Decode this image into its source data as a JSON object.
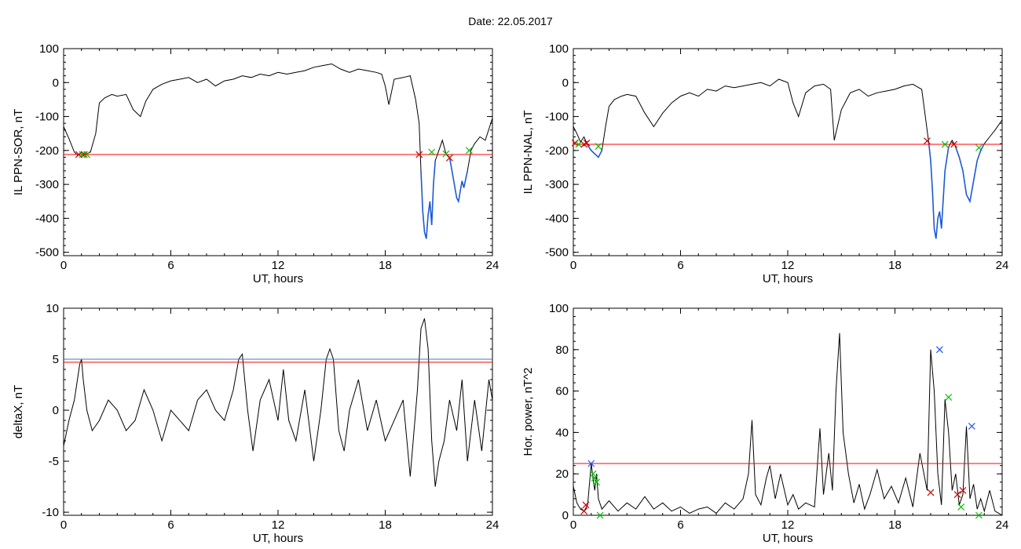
{
  "title": "Date:  22.05.2017",
  "colors": {
    "data": "#000000",
    "threshold": "#ff0000",
    "highlight": "#1e5bd6",
    "marker_green": "#00c000",
    "marker_red": "#d00000",
    "marker_blue": "#2255ee",
    "threshold_blue": "#3a7fd0"
  },
  "chart_data": [
    {
      "id": "ppn-sor",
      "type": "line",
      "ylabel": "IL PPN-SOR, nT",
      "xlabel": "UT, hours",
      "xlim": [
        0,
        24
      ],
      "ylim": [
        -510,
        100
      ],
      "xticks": [
        0,
        6,
        12,
        18,
        24
      ],
      "yticks": [
        -500,
        -400,
        -300,
        -200,
        -100,
        0,
        100
      ],
      "threshold": -212,
      "series": [
        {
          "x": [
            0,
            0.3,
            0.6,
            0.8,
            1.0,
            1.2,
            1.5,
            1.8,
            2.0,
            2.3,
            2.7,
            3.0,
            3.5,
            3.9,
            4.3,
            4.6,
            5.0,
            5.5,
            6.0,
            6.5,
            7.0,
            7.5,
            8.0,
            8.5,
            9.0,
            9.5,
            10.0,
            10.5,
            11.0,
            11.5,
            12.0,
            12.5,
            13.0,
            13.5,
            14.0,
            14.5,
            15.0,
            15.5,
            16.0,
            16.5,
            17.0,
            17.5,
            17.8,
            18.0,
            18.2,
            18.5,
            19.0,
            19.4,
            19.7,
            19.9,
            20.0,
            20.1,
            20.2,
            20.3,
            20.4,
            20.5,
            20.6,
            20.7,
            20.8,
            21.0,
            21.2,
            21.4,
            21.6,
            21.8,
            22.0,
            22.1,
            22.2,
            22.3,
            22.4,
            22.6,
            22.8,
            23.0,
            23.3,
            23.6,
            24
          ],
          "y": [
            -130,
            -165,
            -205,
            -215,
            -205,
            -212,
            -205,
            -150,
            -60,
            -45,
            -35,
            -40,
            -35,
            -80,
            -100,
            -55,
            -20,
            -5,
            5,
            10,
            15,
            0,
            10,
            -10,
            5,
            10,
            20,
            15,
            25,
            20,
            30,
            25,
            30,
            35,
            45,
            50,
            55,
            40,
            30,
            40,
            35,
            30,
            25,
            -10,
            -65,
            10,
            15,
            20,
            -50,
            -120,
            -260,
            -380,
            -440,
            -460,
            -390,
            -350,
            -420,
            -300,
            -230,
            -200,
            -170,
            -210,
            -220,
            -280,
            -340,
            -350,
            -320,
            -290,
            -310,
            -260,
            -200,
            -180,
            -160,
            -170,
            -105
          ]
        }
      ],
      "markers": [
        {
          "color": "red",
          "x": 0.85,
          "y": -212
        },
        {
          "color": "green",
          "x": 1.05,
          "y": -212
        },
        {
          "color": "red",
          "x": 1.15,
          "y": -212
        },
        {
          "color": "green",
          "x": 1.3,
          "y": -212
        },
        {
          "color": "red",
          "x": 19.9,
          "y": -212
        },
        {
          "color": "green",
          "x": 20.6,
          "y": -205
        },
        {
          "color": "green",
          "x": 21.4,
          "y": -210
        },
        {
          "color": "red",
          "x": 21.6,
          "y": -222
        },
        {
          "color": "green",
          "x": 22.7,
          "y": -200
        }
      ]
    },
    {
      "id": "ppn-nal",
      "type": "line",
      "ylabel": "IL PPN-NAL, nT",
      "xlabel": "UT, hours",
      "xlim": [
        0,
        24
      ],
      "ylim": [
        -510,
        100
      ],
      "xticks": [
        0,
        6,
        12,
        18,
        24
      ],
      "yticks": [
        -500,
        -400,
        -300,
        -200,
        -100,
        0,
        100
      ],
      "threshold": -182,
      "series": [
        {
          "x": [
            0,
            0.2,
            0.4,
            0.6,
            0.8,
            1.0,
            1.2,
            1.4,
            1.6,
            1.8,
            2.0,
            2.3,
            2.7,
            3.0,
            3.5,
            4.0,
            4.5,
            5.0,
            5.5,
            6.0,
            6.5,
            7.0,
            7.5,
            8.0,
            8.5,
            9.0,
            9.5,
            10.0,
            10.5,
            11.0,
            11.5,
            12.0,
            12.3,
            12.6,
            13.0,
            13.5,
            14.0,
            14.4,
            14.6,
            15.0,
            15.5,
            16.0,
            16.5,
            17.0,
            17.5,
            18.0,
            18.5,
            19.0,
            19.5,
            19.7,
            19.9,
            20.0,
            20.1,
            20.2,
            20.3,
            20.4,
            20.5,
            20.6,
            20.8,
            21.0,
            21.2,
            21.4,
            21.6,
            21.8,
            22.0,
            22.2,
            22.4,
            22.6,
            22.8,
            23.0,
            23.3,
            23.6,
            24
          ],
          "y": [
            -130,
            -150,
            -175,
            -160,
            -185,
            -200,
            -210,
            -220,
            -200,
            -130,
            -70,
            -50,
            -40,
            -35,
            -40,
            -90,
            -130,
            -90,
            -60,
            -40,
            -30,
            -40,
            -20,
            -25,
            -10,
            -15,
            -10,
            -5,
            0,
            -10,
            10,
            0,
            -60,
            -100,
            -30,
            -10,
            -5,
            -20,
            -170,
            -80,
            -30,
            -20,
            -40,
            -30,
            -25,
            -20,
            -10,
            -5,
            -20,
            -100,
            -180,
            -230,
            -320,
            -430,
            -460,
            -400,
            -380,
            -430,
            -260,
            -190,
            -170,
            -190,
            -220,
            -260,
            -330,
            -350,
            -290,
            -230,
            -200,
            -180,
            -160,
            -140,
            -110
          ]
        }
      ],
      "markers": [
        {
          "color": "red",
          "x": 0.1,
          "y": -178
        },
        {
          "color": "green",
          "x": 0.3,
          "y": -182
        },
        {
          "color": "red",
          "x": 0.6,
          "y": -182
        },
        {
          "color": "red",
          "x": 0.75,
          "y": -178
        },
        {
          "color": "green",
          "x": 1.4,
          "y": -188
        },
        {
          "color": "red",
          "x": 19.8,
          "y": -172
        },
        {
          "color": "green",
          "x": 20.8,
          "y": -182
        },
        {
          "color": "red",
          "x": 21.3,
          "y": -182
        },
        {
          "color": "green",
          "x": 22.7,
          "y": -192
        }
      ]
    },
    {
      "id": "deltax",
      "type": "line",
      "ylabel": "deltaX, nT",
      "xlabel": "UT, hours",
      "xlim": [
        0,
        24
      ],
      "ylim": [
        -10.3,
        10
      ],
      "xticks": [
        0,
        6,
        12,
        18,
        24
      ],
      "yticks": [
        -10,
        -5,
        0,
        5,
        10
      ],
      "threshold": 4.7,
      "threshold2": 5.0,
      "series": [
        {
          "x": [
            0,
            0.3,
            0.6,
            0.9,
            1.0,
            1.1,
            1.3,
            1.6,
            2.0,
            2.5,
            3.0,
            3.5,
            4.0,
            4.5,
            5.0,
            5.5,
            6.0,
            6.5,
            7.0,
            7.5,
            8.0,
            8.5,
            9.0,
            9.5,
            9.8,
            10.0,
            10.3,
            10.6,
            11.0,
            11.5,
            12.0,
            12.3,
            12.6,
            13.0,
            13.5,
            14.0,
            14.4,
            14.7,
            14.9,
            15.1,
            15.4,
            15.7,
            16.0,
            16.5,
            17.0,
            17.5,
            18.0,
            18.5,
            19.0,
            19.4,
            19.8,
            20.0,
            20.2,
            20.4,
            20.6,
            20.8,
            21.0,
            21.3,
            21.6,
            22.0,
            22.3,
            22.6,
            23.0,
            23.4,
            23.8,
            24
          ],
          "y": [
            -3.5,
            -1,
            1,
            4.5,
            5,
            3,
            0,
            -2,
            -1,
            1,
            0,
            -2,
            -1,
            2,
            0,
            -3,
            0,
            -1,
            -2,
            1,
            2,
            0,
            -1,
            2,
            5,
            5.5,
            0,
            -4,
            1,
            3,
            -1,
            4,
            -1,
            -3,
            2,
            -5,
            0,
            5,
            6,
            5,
            -2,
            -4,
            0,
            3,
            -2,
            1,
            -3,
            -1,
            1,
            -6.5,
            2,
            8,
            9,
            6,
            -3,
            -7.5,
            -5,
            -3,
            1,
            -2,
            3,
            -5,
            1,
            -4,
            3,
            1
          ]
        }
      ]
    },
    {
      "id": "hor-power",
      "type": "line",
      "ylabel": "Hor. power, nT^2",
      "xlabel": "UT, hours",
      "xlim": [
        0,
        24
      ],
      "ylim": [
        0,
        100
      ],
      "xticks": [
        0,
        6,
        12,
        18,
        24
      ],
      "yticks": [
        0,
        20,
        40,
        60,
        80,
        100
      ],
      "threshold": 25,
      "series": [
        {
          "x": [
            0,
            0.2,
            0.4,
            0.6,
            0.8,
            1.0,
            1.1,
            1.2,
            1.3,
            1.4,
            1.6,
            2.0,
            2.5,
            3.0,
            3.5,
            4.0,
            4.5,
            5.0,
            5.5,
            6.0,
            6.5,
            7.0,
            7.5,
            8.0,
            8.5,
            9.0,
            9.5,
            9.8,
            10.0,
            10.2,
            10.5,
            10.8,
            11.0,
            11.3,
            11.6,
            12.0,
            12.3,
            12.6,
            13.0,
            13.5,
            13.8,
            14.0,
            14.3,
            14.5,
            14.7,
            14.9,
            15.1,
            15.4,
            15.7,
            16.0,
            16.3,
            16.6,
            17.0,
            17.4,
            17.8,
            18.2,
            18.6,
            19.0,
            19.4,
            19.8,
            20.0,
            20.2,
            20.4,
            20.6,
            20.8,
            21.0,
            21.2,
            21.4,
            21.6,
            21.8,
            22.0,
            22.2,
            22.4,
            22.6,
            22.8,
            23.0,
            23.3,
            23.6,
            24
          ],
          "y": [
            14,
            6,
            3,
            2,
            5,
            25,
            18,
            12,
            20,
            8,
            3,
            7,
            2,
            6,
            3,
            9,
            3,
            6,
            2,
            4,
            1,
            3,
            4,
            1,
            6,
            3,
            8,
            20,
            46,
            10,
            5,
            18,
            24,
            8,
            20,
            5,
            10,
            3,
            6,
            4,
            42,
            10,
            30,
            12,
            60,
            88,
            40,
            20,
            6,
            15,
            3,
            10,
            22,
            8,
            14,
            6,
            18,
            4,
            30,
            12,
            80,
            60,
            20,
            5,
            56,
            40,
            12,
            20,
            5,
            10,
            43,
            8,
            15,
            3,
            8,
            2,
            12,
            2,
            0
          ]
        }
      ],
      "markers": [
        {
          "color": "red",
          "x": 0.6,
          "y": 2
        },
        {
          "color": "red",
          "x": 0.7,
          "y": 5
        },
        {
          "color": "blue",
          "x": 1.0,
          "y": 25
        },
        {
          "color": "green",
          "x": 1.1,
          "y": 20
        },
        {
          "color": "green",
          "x": 1.2,
          "y": 18
        },
        {
          "color": "green",
          "x": 1.3,
          "y": 16
        },
        {
          "color": "green",
          "x": 1.5,
          "y": 0
        },
        {
          "color": "red",
          "x": 20.0,
          "y": 11
        },
        {
          "color": "blue",
          "x": 20.5,
          "y": 80
        },
        {
          "color": "green",
          "x": 21.0,
          "y": 57
        },
        {
          "color": "red",
          "x": 21.5,
          "y": 10
        },
        {
          "color": "red",
          "x": 21.8,
          "y": 12
        },
        {
          "color": "green",
          "x": 21.7,
          "y": 4
        },
        {
          "color": "blue",
          "x": 22.3,
          "y": 43
        },
        {
          "color": "green",
          "x": 22.7,
          "y": 0
        }
      ]
    }
  ]
}
